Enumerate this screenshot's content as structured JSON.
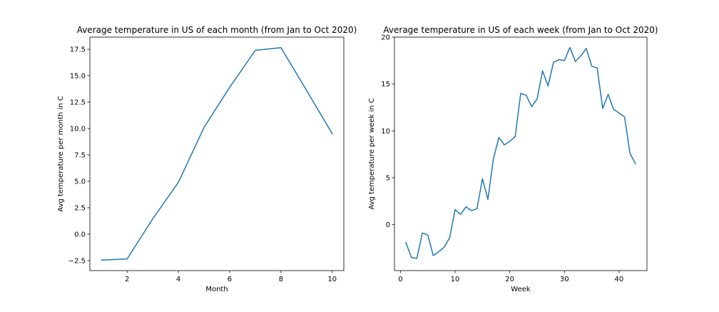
{
  "figure": {
    "background": "#ffffff"
  },
  "chart_data": [
    {
      "type": "line",
      "title": "Average temperature in US of each month (from Jan to Oct 2020)",
      "xlabel": "Month",
      "ylabel": "Avg temperature per month in C",
      "xlim": [
        0.55,
        10.45
      ],
      "ylim": [
        -3.45,
        18.65
      ],
      "xticks": [
        2,
        4,
        6,
        8,
        10
      ],
      "yticks": [
        -2.5,
        0.0,
        2.5,
        5.0,
        7.5,
        10.0,
        12.5,
        15.0,
        17.5
      ],
      "ytick_decimals": 1,
      "grid": false,
      "color": "#1f77b4",
      "x": [
        1,
        2,
        3,
        4,
        5,
        6,
        7,
        8,
        9,
        10
      ],
      "values": [
        -2.45,
        -2.35,
        1.45,
        4.9,
        10.1,
        13.9,
        17.4,
        17.65,
        13.6,
        9.5
      ]
    },
    {
      "type": "line",
      "title": "Average temperature in US of each week (from Jan to Oct 2020)",
      "xlabel": "Week",
      "ylabel": "Avg temperature per week in C",
      "xlim": [
        -1.1,
        45.1
      ],
      "ylim": [
        -4.9,
        20.0
      ],
      "xticks": [
        0,
        10,
        20,
        30,
        40
      ],
      "yticks": [
        0,
        5,
        10,
        15,
        20
      ],
      "ytick_decimals": 0,
      "grid": false,
      "color": "#1f77b4",
      "x": [
        1,
        2,
        3,
        4,
        5,
        6,
        7,
        8,
        9,
        10,
        11,
        12,
        13,
        14,
        15,
        16,
        17,
        18,
        19,
        20,
        21,
        22,
        23,
        24,
        25,
        26,
        27,
        28,
        29,
        30,
        31,
        32,
        33,
        34,
        35,
        36,
        37,
        38,
        39,
        40,
        41,
        42,
        43
      ],
      "values": [
        -1.9,
        -3.5,
        -3.6,
        -0.9,
        -1.1,
        -3.3,
        -2.9,
        -2.4,
        -1.4,
        1.6,
        1.1,
        1.9,
        1.5,
        1.7,
        4.9,
        2.7,
        7.0,
        9.3,
        8.5,
        8.9,
        9.4,
        14.0,
        13.8,
        12.6,
        13.4,
        16.4,
        14.8,
        17.3,
        17.6,
        17.5,
        18.9,
        17.4,
        18.0,
        18.8,
        16.9,
        16.7,
        12.4,
        13.9,
        12.3,
        11.9,
        11.5,
        7.6,
        6.5
      ]
    }
  ]
}
